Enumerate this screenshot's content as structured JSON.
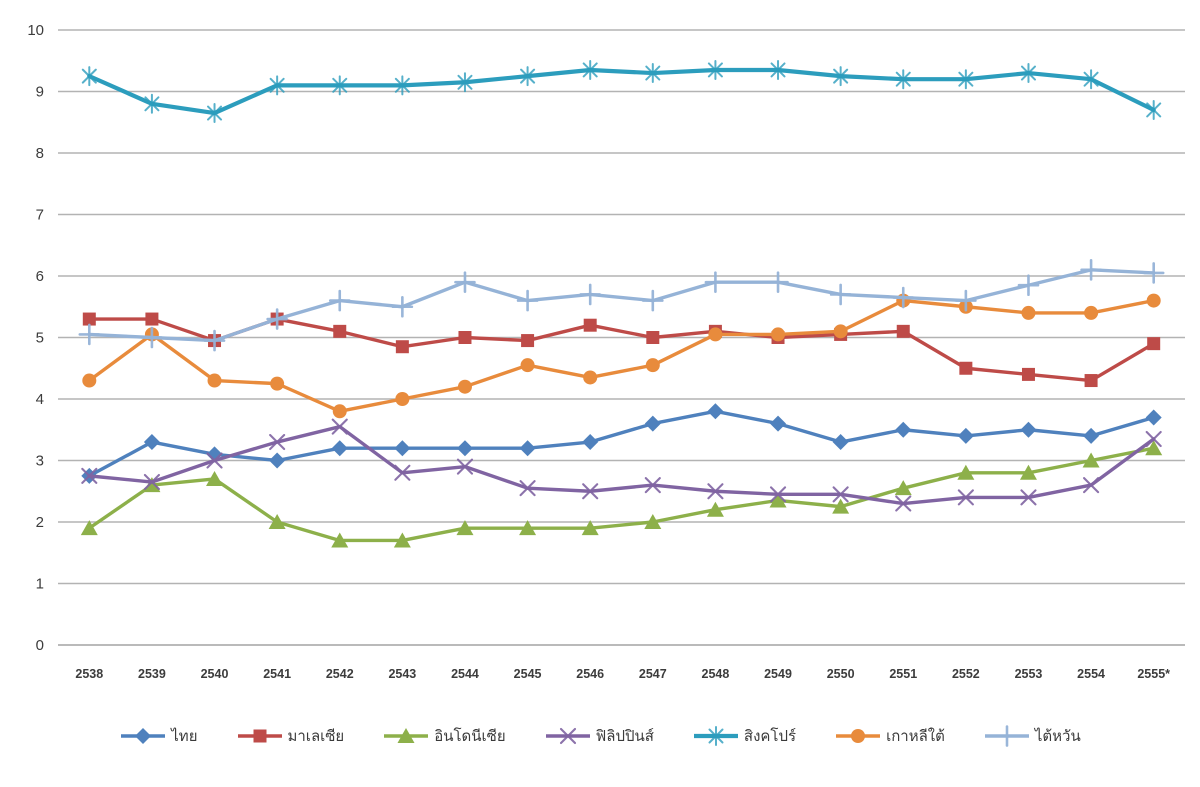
{
  "chart_data": {
    "type": "line",
    "title": "",
    "xlabel": "",
    "ylabel": "",
    "ylim": [
      0,
      10
    ],
    "y_ticks": [
      0,
      1,
      2,
      3,
      4,
      5,
      6,
      7,
      8,
      9,
      10
    ],
    "grid": true,
    "legend_position": "bottom",
    "categories": [
      "2538",
      "2539",
      "2540",
      "2541",
      "2542",
      "2543",
      "2544",
      "2545",
      "2546",
      "2547",
      "2548",
      "2549",
      "2550",
      "2551",
      "2552",
      "2553",
      "2554",
      "2555*"
    ],
    "series": [
      {
        "id": "thailand",
        "name": "ไทย",
        "color": "#4F81BD",
        "marker": "diamond",
        "values": [
          2.75,
          3.3,
          3.1,
          3.0,
          3.2,
          3.2,
          3.2,
          3.2,
          3.3,
          3.6,
          3.8,
          3.6,
          3.3,
          3.5,
          3.4,
          3.5,
          3.4,
          3.7
        ]
      },
      {
        "id": "malaysia",
        "name": "มาเลเซีย",
        "color": "#BE4B48",
        "marker": "square",
        "values": [
          5.3,
          5.3,
          4.95,
          5.3,
          5.1,
          4.85,
          5.0,
          4.95,
          5.2,
          5.0,
          5.1,
          5.0,
          5.05,
          5.1,
          4.5,
          4.4,
          4.3,
          4.9
        ]
      },
      {
        "id": "indonesia",
        "name": "อินโดนีเซีย",
        "color": "#8DB04A",
        "marker": "triangle",
        "values": [
          1.9,
          2.6,
          2.7,
          2.0,
          1.7,
          1.7,
          1.9,
          1.9,
          1.9,
          2.0,
          2.2,
          2.35,
          2.25,
          2.55,
          2.8,
          2.8,
          3.0,
          3.2
        ]
      },
      {
        "id": "philippines",
        "name": "ฟิลิปปินส์",
        "color": "#8064A2",
        "marker": "x",
        "values": [
          2.75,
          2.65,
          3.0,
          3.3,
          3.55,
          2.8,
          2.9,
          2.55,
          2.5,
          2.6,
          2.5,
          2.45,
          2.45,
          2.3,
          2.4,
          2.4,
          2.6,
          3.35
        ]
      },
      {
        "id": "singapore",
        "name": "สิงคโปร์",
        "color": "#2C9DBD",
        "marker": "asterisk",
        "values": [
          9.25,
          8.8,
          8.65,
          9.1,
          9.1,
          9.1,
          9.15,
          9.25,
          9.35,
          9.3,
          9.35,
          9.35,
          9.25,
          9.2,
          9.2,
          9.3,
          9.2,
          8.7
        ]
      },
      {
        "id": "south-korea",
        "name": "เกาหลีใต้",
        "color": "#E88B3C",
        "marker": "circle",
        "values": [
          4.3,
          5.05,
          4.3,
          4.25,
          3.8,
          4.0,
          4.2,
          4.55,
          4.35,
          4.55,
          5.05,
          5.05,
          5.1,
          5.6,
          5.5,
          5.4,
          5.4,
          5.6
        ]
      },
      {
        "id": "taiwan",
        "name": "ไต้หวัน",
        "color": "#95B3D7",
        "marker": "plus",
        "values": [
          5.05,
          5.0,
          4.95,
          5.3,
          5.6,
          5.5,
          5.9,
          5.6,
          5.7,
          5.6,
          5.9,
          5.9,
          5.7,
          5.65,
          5.6,
          5.85,
          6.1,
          6.05
        ]
      }
    ]
  }
}
